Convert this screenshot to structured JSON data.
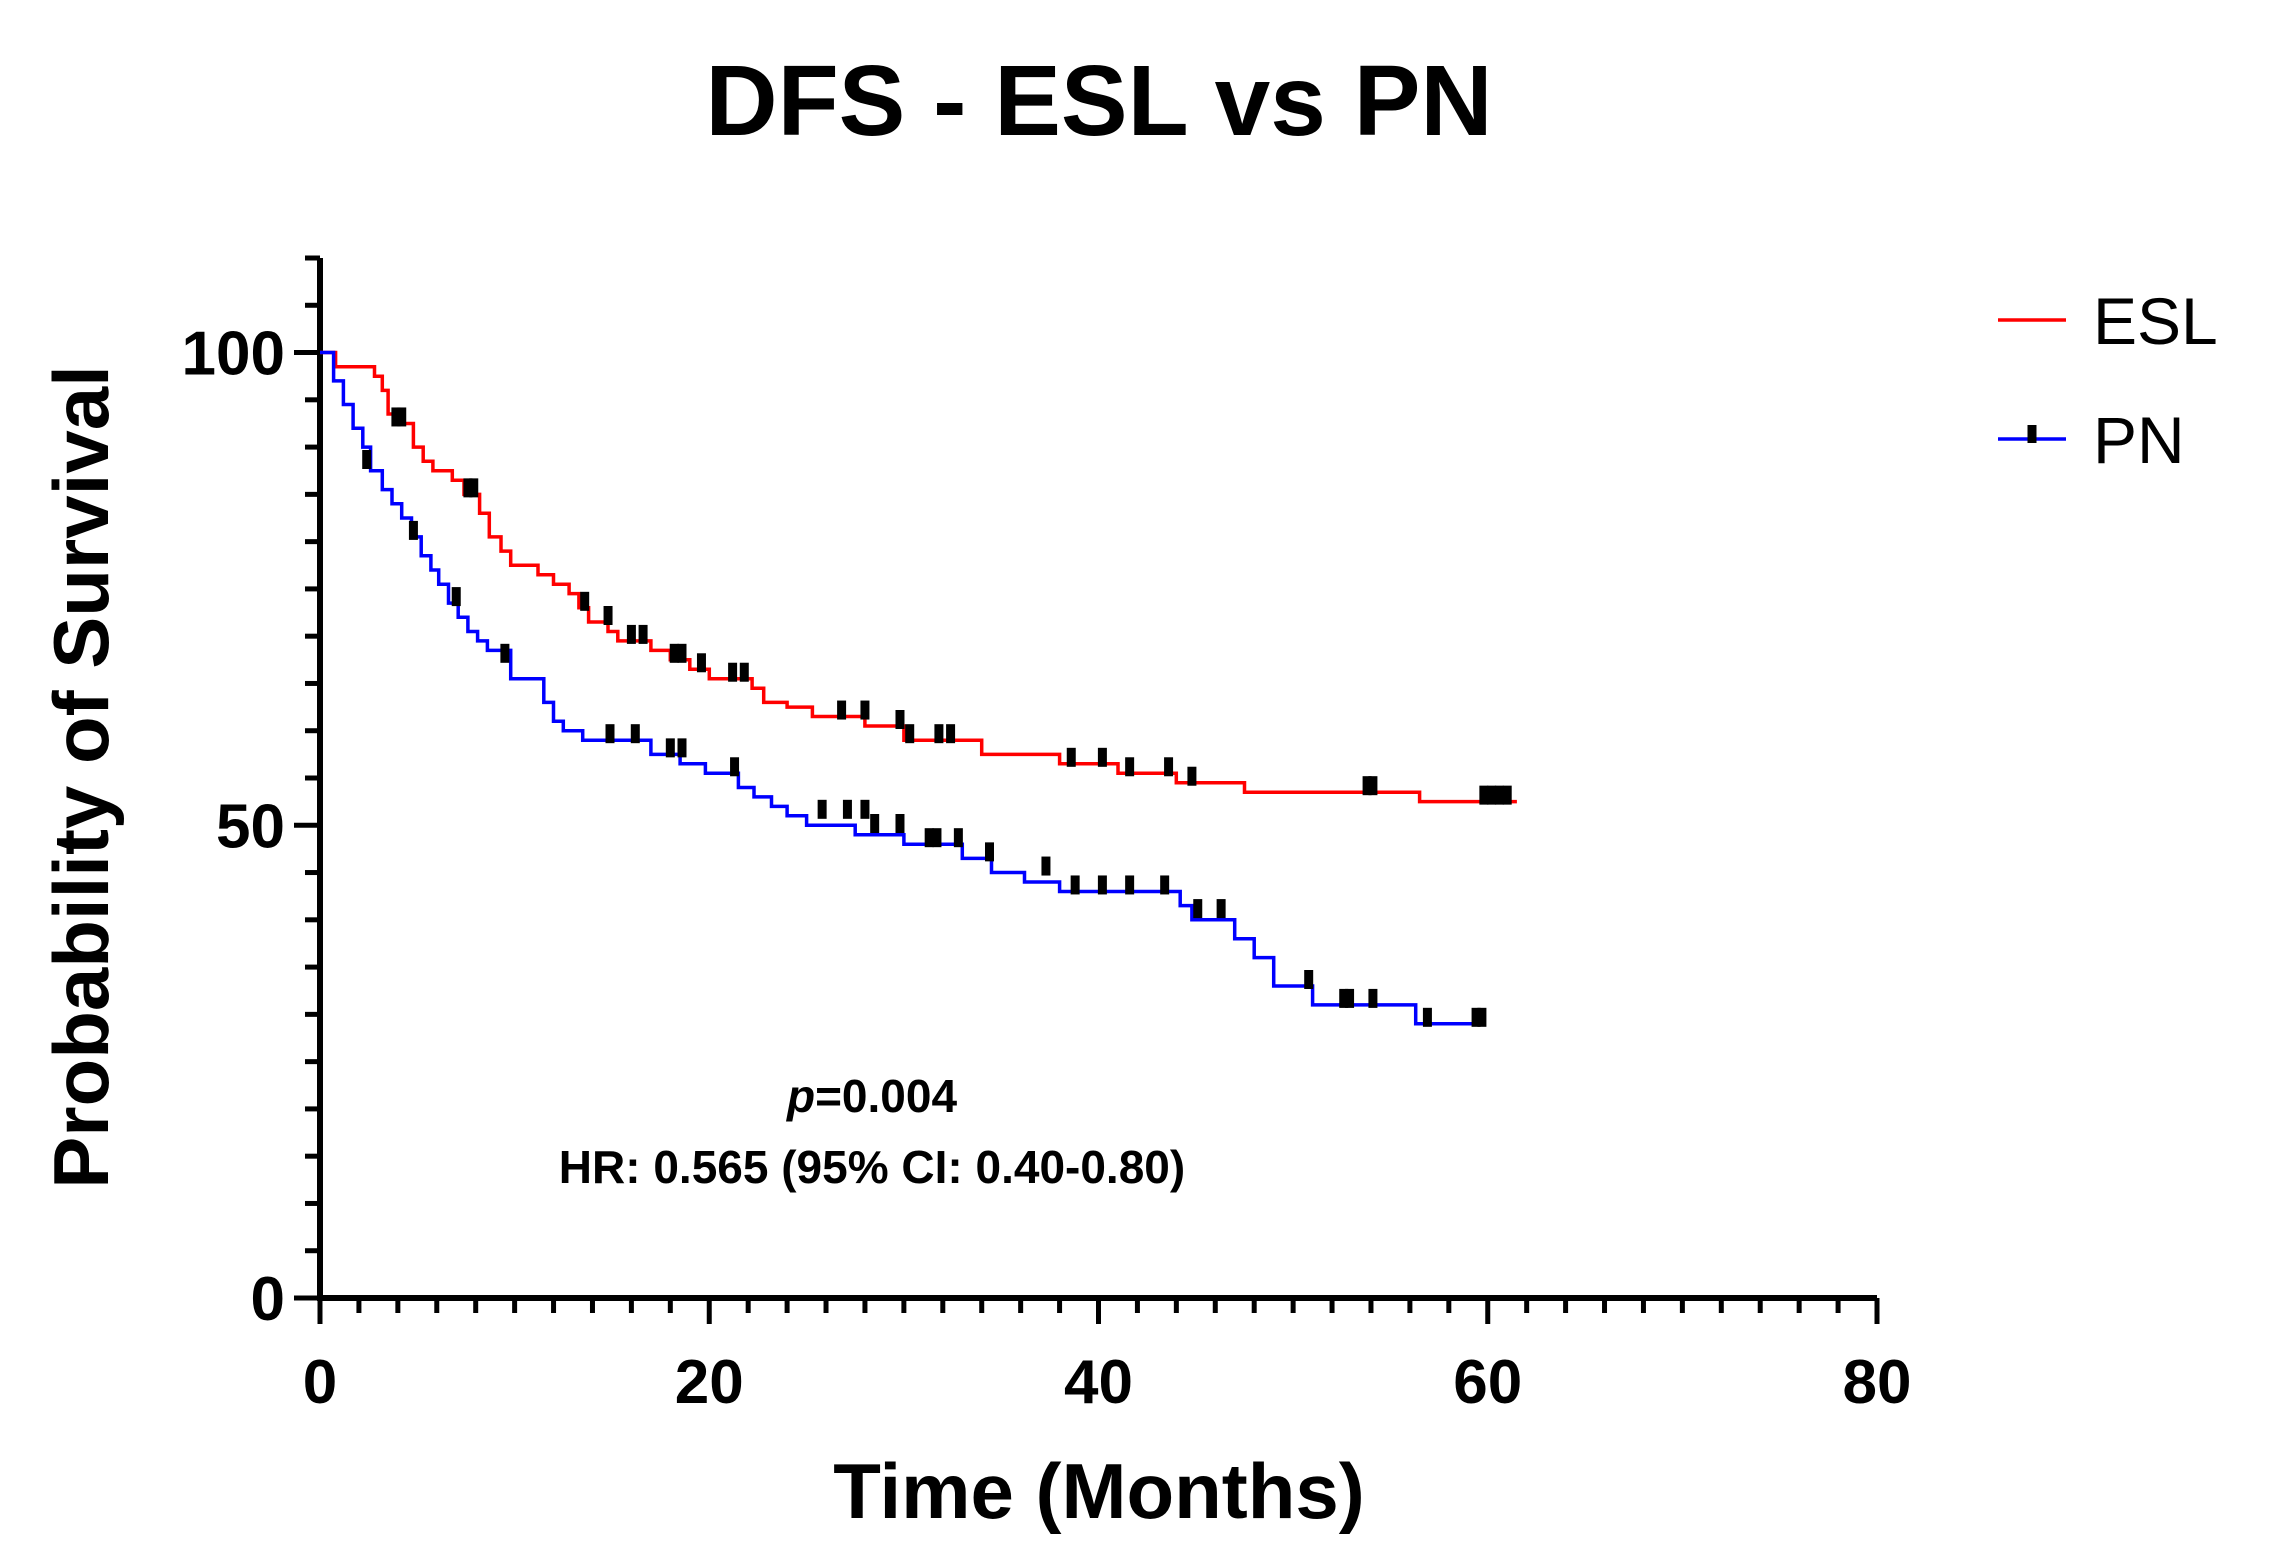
{
  "chart_data": {
    "type": "line",
    "title": "DFS - ESL vs PN",
    "xlabel": "Time (Months)",
    "ylabel": "Probability of Survival",
    "xlim": [
      0,
      80
    ],
    "ylim": [
      0,
      110
    ],
    "x_ticks": [
      0,
      20,
      40,
      60,
      80
    ],
    "y_ticks": [
      0,
      50,
      100
    ],
    "grid": false,
    "legend_position": "top-right",
    "annotations": {
      "p_label": "p",
      "p_value": "=0.004",
      "hr": "HR: 0.565 (95% CI: 0.40-0.80)"
    },
    "series": [
      {
        "name": "ESL",
        "color": "#ff0000",
        "steps": [
          [
            0,
            100
          ],
          [
            0.8,
            98.5
          ],
          [
            2.8,
            97.5
          ],
          [
            3.2,
            96
          ],
          [
            3.5,
            93.5
          ],
          [
            4.3,
            92.5
          ],
          [
            4.8,
            90
          ],
          [
            5.3,
            88.5
          ],
          [
            5.8,
            87.5
          ],
          [
            6.8,
            86.5
          ],
          [
            7.4,
            85
          ],
          [
            8.2,
            83
          ],
          [
            8.7,
            80.5
          ],
          [
            9.3,
            79
          ],
          [
            9.8,
            77.5
          ],
          [
            11.2,
            76.5
          ],
          [
            12.0,
            75.5
          ],
          [
            12.8,
            74.5
          ],
          [
            13.3,
            73
          ],
          [
            13.8,
            71.5
          ],
          [
            14.8,
            70.5
          ],
          [
            15.3,
            69.5
          ],
          [
            17.0,
            68.5
          ],
          [
            18.0,
            67.5
          ],
          [
            19.0,
            66.5
          ],
          [
            20.0,
            65.5
          ],
          [
            22.2,
            64.5
          ],
          [
            22.8,
            63
          ],
          [
            24.0,
            62.5
          ],
          [
            25.3,
            61.5
          ],
          [
            28.0,
            60.5
          ],
          [
            30.0,
            59
          ],
          [
            34.0,
            57.5
          ],
          [
            38.0,
            56.5
          ],
          [
            41.0,
            55.5
          ],
          [
            44.0,
            54.5
          ],
          [
            47.5,
            53.5
          ],
          [
            56.5,
            52.5
          ],
          [
            61.5,
            52.5
          ]
        ],
        "censors": [
          [
            3.9,
            92.5
          ],
          [
            4.2,
            92.5
          ],
          [
            7.6,
            85
          ],
          [
            7.9,
            85
          ],
          [
            13.6,
            73
          ],
          [
            14.8,
            71.5
          ],
          [
            16.0,
            69.5
          ],
          [
            16.6,
            69.5
          ],
          [
            18.2,
            67.5
          ],
          [
            18.6,
            67.5
          ],
          [
            19.6,
            66.5
          ],
          [
            21.2,
            65.5
          ],
          [
            21.8,
            65.5
          ],
          [
            26.8,
            61.5
          ],
          [
            28.0,
            61.5
          ],
          [
            29.8,
            60.5
          ],
          [
            30.3,
            59
          ],
          [
            31.8,
            59
          ],
          [
            32.4,
            59
          ],
          [
            38.6,
            56.5
          ],
          [
            40.2,
            56.5
          ],
          [
            41.6,
            55.5
          ],
          [
            43.6,
            55.5
          ],
          [
            44.8,
            54.5
          ],
          [
            53.8,
            53.5
          ],
          [
            54.1,
            53.5
          ],
          [
            59.8,
            52.5
          ],
          [
            60.2,
            52.5
          ],
          [
            60.6,
            52.5
          ],
          [
            61.0,
            52.5
          ]
        ]
      },
      {
        "name": "PN",
        "color": "#0000ff",
        "steps": [
          [
            0,
            100
          ],
          [
            0.7,
            97
          ],
          [
            1.2,
            94.5
          ],
          [
            1.7,
            92
          ],
          [
            2.2,
            90
          ],
          [
            2.6,
            87.5
          ],
          [
            3.2,
            85.5
          ],
          [
            3.7,
            84
          ],
          [
            4.2,
            82.5
          ],
          [
            4.7,
            80.5
          ],
          [
            5.2,
            78.5
          ],
          [
            5.7,
            77
          ],
          [
            6.1,
            75.5
          ],
          [
            6.6,
            73.5
          ],
          [
            7.1,
            72
          ],
          [
            7.6,
            70.5
          ],
          [
            8.1,
            69.5
          ],
          [
            8.6,
            68.5
          ],
          [
            9.8,
            65.5
          ],
          [
            11.5,
            63
          ],
          [
            12.0,
            61
          ],
          [
            12.5,
            60
          ],
          [
            13.5,
            59
          ],
          [
            17.0,
            57.5
          ],
          [
            18.5,
            56.5
          ],
          [
            19.8,
            55.5
          ],
          [
            21.5,
            54
          ],
          [
            22.3,
            53
          ],
          [
            23.2,
            52
          ],
          [
            24.0,
            51
          ],
          [
            25.0,
            50
          ],
          [
            27.5,
            49
          ],
          [
            30.0,
            48
          ],
          [
            33.0,
            46.5
          ],
          [
            34.5,
            45
          ],
          [
            36.2,
            44
          ],
          [
            38.0,
            43
          ],
          [
            44.2,
            41.5
          ],
          [
            44.8,
            40
          ],
          [
            47.0,
            38
          ],
          [
            48.0,
            36
          ],
          [
            49.0,
            33
          ],
          [
            51.0,
            31
          ],
          [
            56.3,
            29
          ],
          [
            59.8,
            29
          ]
        ],
        "censors": [
          [
            2.4,
            88
          ],
          [
            4.8,
            80.5
          ],
          [
            7.0,
            73.5
          ],
          [
            9.5,
            67.5
          ],
          [
            14.9,
            59
          ],
          [
            16.2,
            59
          ],
          [
            18.0,
            57.5
          ],
          [
            18.6,
            57.5
          ],
          [
            21.3,
            55.5
          ],
          [
            25.8,
            51
          ],
          [
            27.1,
            51
          ],
          [
            28.0,
            51
          ],
          [
            28.5,
            49.5
          ],
          [
            29.8,
            49.5
          ],
          [
            31.3,
            48
          ],
          [
            31.7,
            48
          ],
          [
            32.8,
            48
          ],
          [
            34.4,
            46.5
          ],
          [
            37.3,
            45
          ],
          [
            38.8,
            43
          ],
          [
            40.2,
            43
          ],
          [
            41.6,
            43
          ],
          [
            43.4,
            43
          ],
          [
            45.1,
            40.5
          ],
          [
            46.3,
            40.5
          ],
          [
            50.8,
            33
          ],
          [
            52.6,
            31
          ],
          [
            52.9,
            31
          ],
          [
            54.1,
            31
          ],
          [
            56.9,
            29
          ],
          [
            59.4,
            29
          ],
          [
            59.7,
            29
          ]
        ]
      }
    ]
  }
}
